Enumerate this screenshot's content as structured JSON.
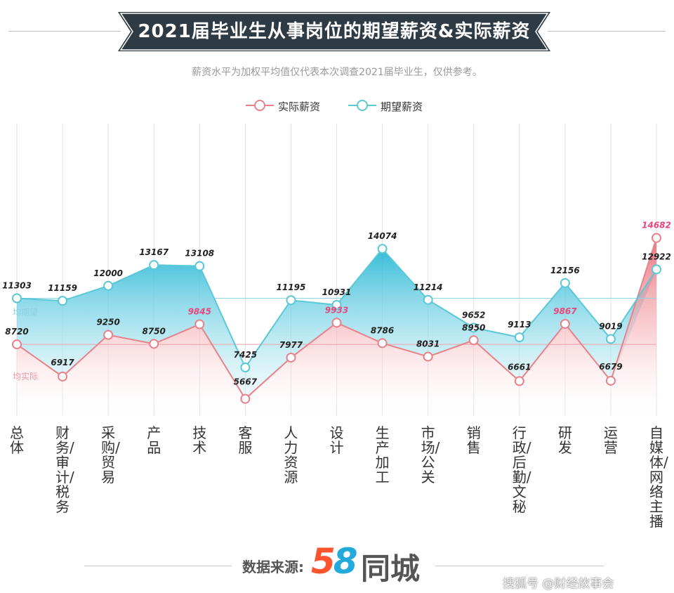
{
  "header": {
    "title": "2021届毕业生从事岗位的期望薪资&实际薪资",
    "subtitle": "薪资水平为加权平均值仅代表本次调查2021届毕业生，仅供参考。"
  },
  "colors": {
    "actual": "#e8828a",
    "expected": "#5bc8d6",
    "highlight": "#e8467c",
    "banner": "#2f3b44"
  },
  "chart_data": {
    "type": "line",
    "title": "2021届毕业生从事岗位的期望薪资&实际薪资",
    "categories": [
      "总体",
      "财务/审计/税务",
      "采购/贸易",
      "产品",
      "技术",
      "客服",
      "人力资源",
      "设计",
      "生产加工",
      "市场/公关",
      "销售",
      "行政/后勤/文秘",
      "研发",
      "运营",
      "自媒体/网络主播"
    ],
    "series": [
      {
        "name": "实际薪资",
        "values": [
          8720,
          6917,
          9250,
          8750,
          9845,
          5667,
          7977,
          9933,
          8786,
          8031,
          8950,
          6661,
          9867,
          6679,
          14682
        ]
      },
      {
        "name": "期望薪资",
        "values": [
          11303,
          11159,
          12000,
          13167,
          13108,
          7425,
          11195,
          10931,
          14074,
          11214,
          9652,
          9113,
          12156,
          9019,
          12922
        ]
      }
    ],
    "highlighted_actual": [
      4,
      7,
      12,
      14
    ],
    "reference_lines": [
      {
        "label": "均期望",
        "value": 11303
      },
      {
        "label": "均实际",
        "value": 8720
      }
    ],
    "ylim": [
      4000,
      15500
    ],
    "legend_position": "top-center"
  },
  "legend": {
    "actual_label": "实际薪资",
    "expected_label": "期望薪资"
  },
  "footer": {
    "source_label": "数据来源:",
    "logo_number_1": "5",
    "logo_number_2": "8",
    "logo_text": "同城",
    "watermark": "搜狐号 @财经故事会"
  }
}
